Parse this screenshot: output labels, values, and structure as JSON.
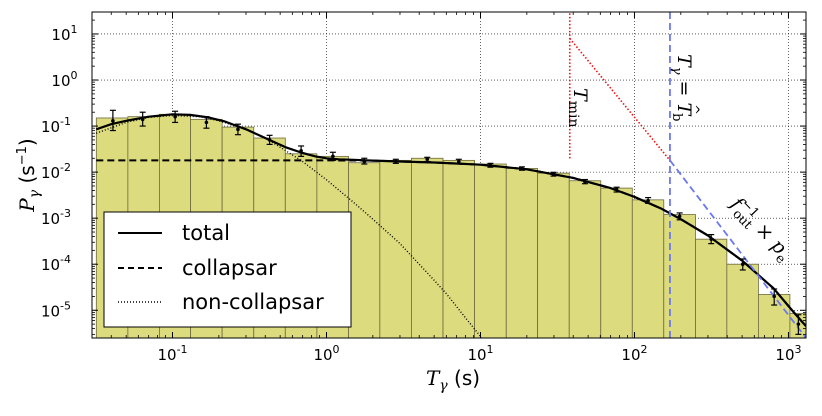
{
  "chart_data": {
    "type": "bar",
    "xlabel": "T_γ (s)",
    "ylabel": "P_γ (s⁻¹)",
    "x_scale": "log",
    "y_scale": "log",
    "xlim": [
      0.03,
      1300
    ],
    "ylim": [
      2.5e-06,
      30
    ],
    "grid": true,
    "x_ticks": [
      {
        "value": 0.1,
        "mantissa": "10",
        "exp": "-1"
      },
      {
        "value": 1,
        "mantissa": "10",
        "exp": "0"
      },
      {
        "value": 10,
        "mantissa": "10",
        "exp": "1"
      },
      {
        "value": 100,
        "mantissa": "10",
        "exp": "2"
      },
      {
        "value": 1000,
        "mantissa": "10",
        "exp": "3"
      }
    ],
    "y_ticks": [
      {
        "value": 1e-05,
        "mantissa": "10",
        "exp": "-5"
      },
      {
        "value": 0.0001,
        "mantissa": "10",
        "exp": "-4"
      },
      {
        "value": 0.001,
        "mantissa": "10",
        "exp": "-3"
      },
      {
        "value": 0.01,
        "mantissa": "10",
        "exp": "-2"
      },
      {
        "value": 0.1,
        "mantissa": "10",
        "exp": "-1"
      },
      {
        "value": 1,
        "mantissa": "10",
        "exp": "0"
      },
      {
        "value": 10,
        "mantissa": "10",
        "exp": "1"
      }
    ],
    "histogram": {
      "bin_edges": [
        0.032,
        0.0513,
        0.0822,
        0.131,
        0.21,
        0.337,
        0.54,
        0.866,
        1.39,
        2.22,
        3.56,
        5.71,
        9.15,
        14.7,
        23.5,
        37.7,
        60.4,
        96.8,
        155,
        249,
        398,
        638,
        1022,
        1300
      ],
      "values": [
        0.15,
        0.16,
        0.18,
        0.14,
        0.095,
        0.055,
        0.025,
        0.022,
        0.016,
        0.018,
        0.02,
        0.018,
        0.015,
        0.012,
        0.0095,
        0.0065,
        0.0045,
        0.0025,
        0.0012,
        0.00035,
        0.0001,
        2.2e-05,
        8.5e-06
      ],
      "fill": "#dcdb7e"
    },
    "error_points": [
      {
        "x": 0.041,
        "y": 0.13,
        "lo": 0.08,
        "hi": 0.22
      },
      {
        "x": 0.064,
        "y": 0.14,
        "lo": 0.1,
        "hi": 0.2
      },
      {
        "x": 0.104,
        "y": 0.16,
        "lo": 0.12,
        "hi": 0.21
      },
      {
        "x": 0.166,
        "y": 0.12,
        "lo": 0.09,
        "hi": 0.16
      },
      {
        "x": 0.266,
        "y": 0.085,
        "lo": 0.065,
        "hi": 0.11
      },
      {
        "x": 0.427,
        "y": 0.05,
        "lo": 0.04,
        "hi": 0.063
      },
      {
        "x": 0.684,
        "y": 0.029,
        "lo": 0.022,
        "hi": 0.037
      },
      {
        "x": 1.1,
        "y": 0.022,
        "lo": 0.018,
        "hi": 0.027
      },
      {
        "x": 1.76,
        "y": 0.017,
        "lo": 0.015,
        "hi": 0.02
      },
      {
        "x": 2.82,
        "y": 0.017,
        "lo": 0.0155,
        "hi": 0.019
      },
      {
        "x": 4.51,
        "y": 0.019,
        "lo": 0.017,
        "hi": 0.021
      },
      {
        "x": 7.23,
        "y": 0.017,
        "lo": 0.0155,
        "hi": 0.019
      },
      {
        "x": 11.6,
        "y": 0.014,
        "lo": 0.0128,
        "hi": 0.0155
      },
      {
        "x": 18.6,
        "y": 0.012,
        "lo": 0.011,
        "hi": 0.013
      },
      {
        "x": 29.8,
        "y": 0.009,
        "lo": 0.0082,
        "hi": 0.0099
      },
      {
        "x": 47.7,
        "y": 0.0062,
        "lo": 0.0056,
        "hi": 0.0069
      },
      {
        "x": 76.5,
        "y": 0.0042,
        "lo": 0.0037,
        "hi": 0.0047
      },
      {
        "x": 122.6,
        "y": 0.0024,
        "lo": 0.0021,
        "hi": 0.0028
      },
      {
        "x": 196.5,
        "y": 0.0011,
        "lo": 0.00092,
        "hi": 0.0013
      },
      {
        "x": 315,
        "y": 0.00035,
        "lo": 0.00028,
        "hi": 0.00044
      },
      {
        "x": 505,
        "y": 0.0001,
        "lo": 7.5e-05,
        "hi": 0.00013
      },
      {
        "x": 808,
        "y": 2e-05,
        "lo": 1.3e-05,
        "hi": 2.9e-05
      },
      {
        "x": 1160,
        "y": 5e-06,
        "lo": 3e-06,
        "hi": 8e-06
      }
    ],
    "series": [
      {
        "name": "total",
        "style": "solid",
        "x": [
          0.032,
          0.04,
          0.05,
          0.07,
          0.1,
          0.13,
          0.17,
          0.22,
          0.3,
          0.4,
          0.55,
          0.7,
          0.85,
          1.0,
          1.2,
          1.5,
          2.0,
          3.0,
          5.0,
          10,
          20,
          40,
          70,
          100,
          150,
          200,
          300,
          500,
          800,
          1100,
          1300
        ],
        "y": [
          0.085,
          0.11,
          0.13,
          0.16,
          0.18,
          0.175,
          0.155,
          0.125,
          0.085,
          0.055,
          0.034,
          0.026,
          0.022,
          0.02,
          0.019,
          0.0185,
          0.0178,
          0.017,
          0.0162,
          0.0145,
          0.0115,
          0.0075,
          0.0045,
          0.0029,
          0.0016,
          0.00095,
          0.00042,
          0.00012,
          3e-05,
          8.5e-06,
          4.5e-06
        ]
      },
      {
        "name": "collapsar",
        "style": "dashed",
        "x": [
          0.032,
          0.1,
          0.5,
          1.0,
          2.0,
          3.0,
          5.0,
          10,
          20,
          40,
          70,
          100,
          150,
          200,
          300,
          500,
          800,
          1100,
          1300
        ],
        "y": [
          0.018,
          0.018,
          0.018,
          0.018,
          0.0178,
          0.017,
          0.0162,
          0.0145,
          0.0115,
          0.0075,
          0.0045,
          0.0029,
          0.0016,
          0.00095,
          0.00042,
          0.00012,
          3e-05,
          8.5e-06,
          4.5e-06
        ]
      },
      {
        "name": "non-collapsar",
        "style": "dotted",
        "x": [
          0.032,
          0.05,
          0.07,
          0.1,
          0.15,
          0.2,
          0.3,
          0.4,
          0.5,
          0.7,
          1.0,
          1.5,
          2.0,
          3.0,
          4.0,
          5.0,
          6.0,
          7.0,
          8.0,
          9.0,
          10.0,
          11.0
        ],
        "y": [
          0.07,
          0.12,
          0.155,
          0.17,
          0.16,
          0.13,
          0.085,
          0.055,
          0.035,
          0.017,
          0.0068,
          0.0022,
          0.00095,
          0.00028,
          0.0001,
          4.5e-05,
          2.3e-05,
          1.2e-05,
          6.8e-06,
          4.2e-06,
          2.7e-06,
          1.8e-06
        ]
      }
    ],
    "reference_lines": [
      {
        "id": "tmin-vertical",
        "color": "#ee1111",
        "style": "dotted",
        "x": [
          38,
          38
        ],
        "y": [
          28,
          0.018
        ]
      },
      {
        "id": "tmin-slope",
        "color": "#ee1111",
        "style": "dotted",
        "x": [
          38,
          170
        ],
        "y": [
          8,
          0.018
        ]
      },
      {
        "id": "tb-vertical",
        "color": "#6b78f0",
        "style": "dashed",
        "x": [
          170,
          170
        ],
        "y": [
          30,
          2.5e-06
        ]
      },
      {
        "id": "fout-slope",
        "color": "#6b78f0",
        "style": "dashed",
        "x": [
          170,
          1300
        ],
        "y": [
          0.018,
          2.5e-06
        ]
      }
    ],
    "annotations": {
      "tmin": {
        "main": "T",
        "sub": "min"
      },
      "tb": {
        "main": "T",
        "sub": "γ",
        "eq": " = ",
        "main2": "T",
        "hat": "^",
        "sub2": "b"
      },
      "fout": {
        "main": "f",
        "sup": "−1",
        "sub": "out",
        "times": " × ",
        "main2": "p",
        "sub2": "e"
      }
    },
    "legend": {
      "placement": "lower-left",
      "entries": [
        {
          "label": "total",
          "style": "solid"
        },
        {
          "label": "collapsar",
          "style": "dashed"
        },
        {
          "label": "non-collapsar",
          "style": "dotted"
        }
      ]
    }
  }
}
